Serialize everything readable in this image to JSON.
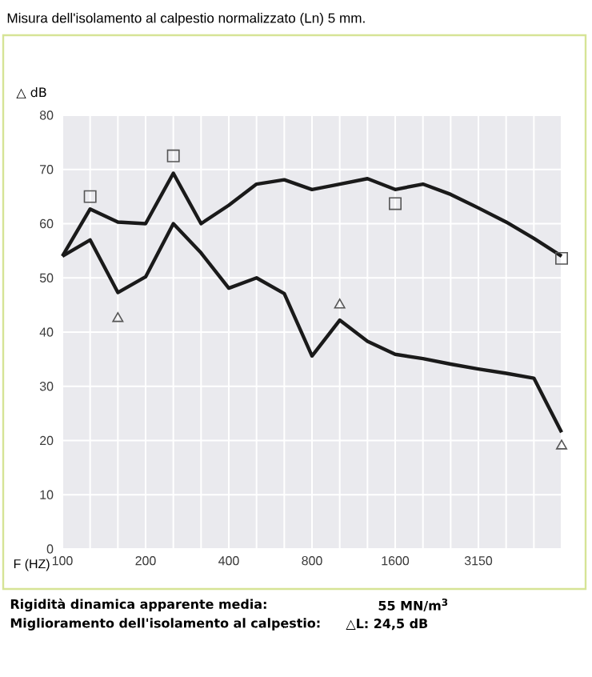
{
  "chart_data": {
    "type": "line",
    "title": "Misura dell'isolamento al calpestio normalizzato (Ln) 5 mm.",
    "xlabel": "F (HZ)",
    "ylabel": "△ dB",
    "categories": [
      "100",
      null,
      null,
      "200",
      null,
      null,
      "400",
      null,
      null,
      "800",
      null,
      null,
      "1600",
      null,
      null,
      "3150",
      null,
      null,
      null
    ],
    "series": [
      {
        "color": "#1a1a1a",
        "values": [
          54,
          62.7,
          60.3,
          60,
          69.3,
          60,
          63.4,
          67.3,
          68.1,
          66.3,
          67.3,
          68.3,
          66.3,
          67.3,
          65.4,
          62.9,
          60.3,
          57.3,
          54
        ]
      },
      {
        "color": "#1a1a1a",
        "values": [
          54,
          57,
          47.3,
          50.2,
          60,
          54.6,
          48.1,
          50,
          47.1,
          35.6,
          42.2,
          38.3,
          35.9,
          35.1,
          34.1,
          33.2,
          32.4,
          31.5,
          21.5
        ]
      },
      {
        "type": "scatter",
        "marker": "square",
        "color": "#555555",
        "values": [
          null,
          65,
          null,
          null,
          72.5,
          null,
          null,
          null,
          null,
          null,
          null,
          null,
          63.7,
          null,
          null,
          null,
          null,
          null,
          53.6
        ]
      },
      {
        "type": "scatter",
        "marker": "triangle",
        "color": "#555555",
        "values": [
          null,
          null,
          42.5,
          null,
          null,
          null,
          null,
          null,
          null,
          null,
          45,
          null,
          null,
          null,
          null,
          null,
          null,
          null,
          19
        ]
      }
    ],
    "ylim": [
      0,
      80
    ],
    "yticks": [
      0,
      10,
      20,
      30,
      40,
      50,
      60,
      70,
      80
    ],
    "grid": true,
    "marker": "none",
    "line_style": "solid",
    "annotations": [
      "Rigidità dinamica apparente media:",
      "55 MN/m$^{3}$",
      "Miglioramento dell'isolamento al calpestio:",
      "△L: 24,5 dB"
    ]
  }
}
